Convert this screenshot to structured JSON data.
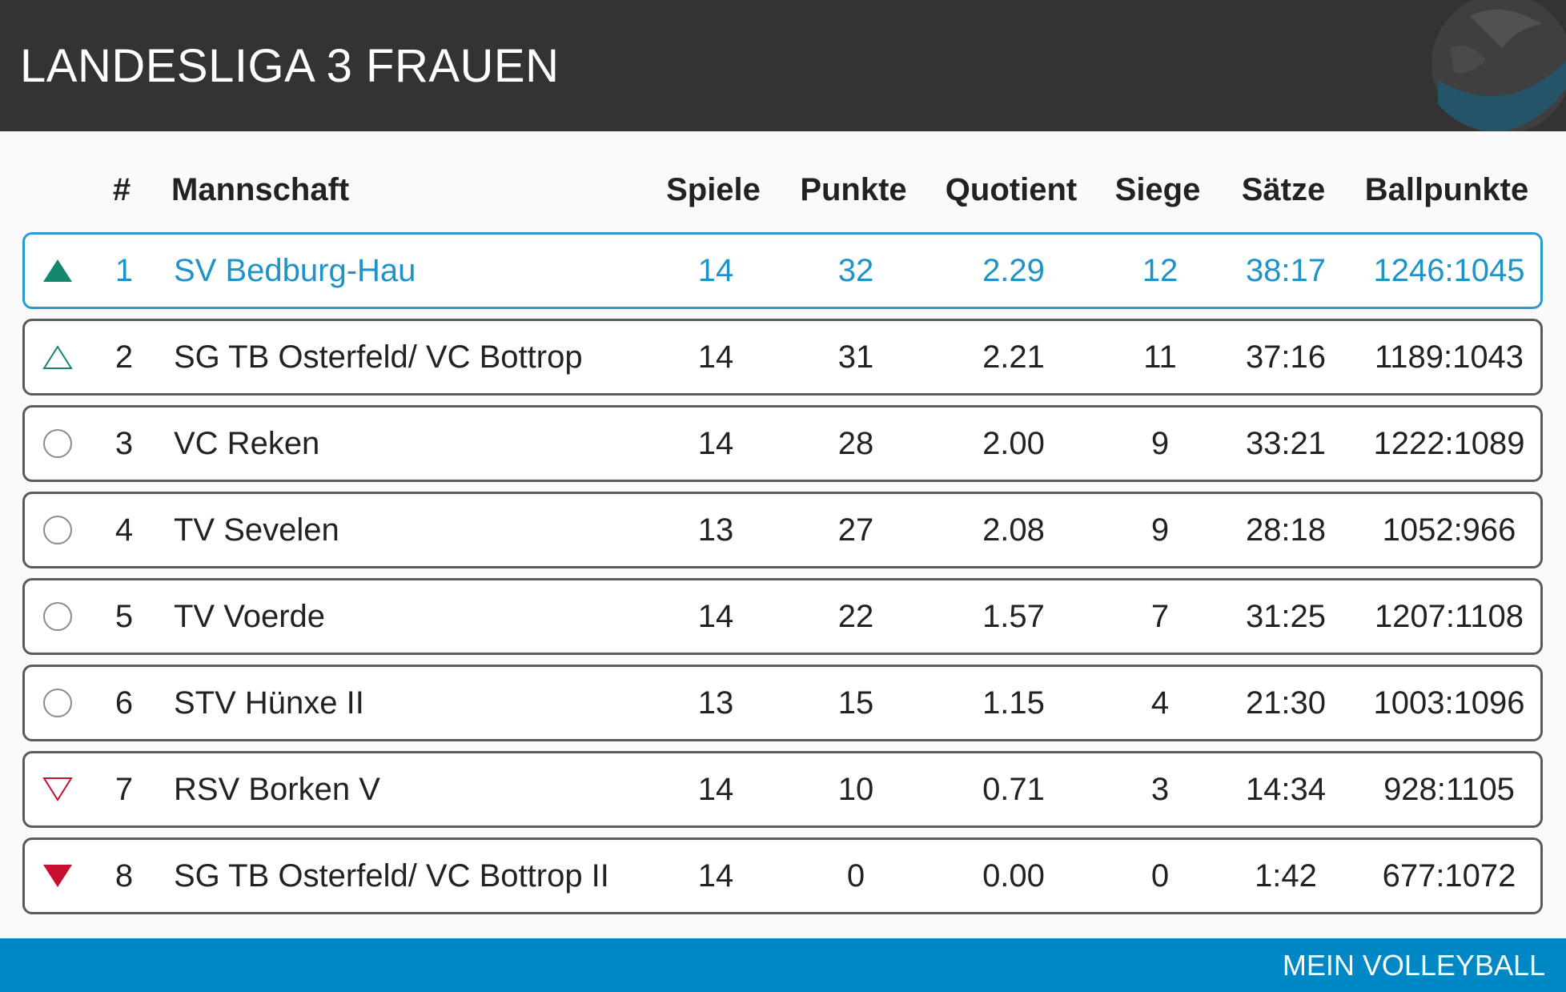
{
  "header": {
    "title": "LANDESLIGA 3 FRAUEN"
  },
  "table": {
    "columns": {
      "rank": "#",
      "team": "Mannschaft",
      "spiele": "Spiele",
      "punkte": "Punkte",
      "quotient": "Quotient",
      "siege": "Siege",
      "saetze": "Sätze",
      "ballpunkte": "Ballpunkte"
    },
    "rows": [
      {
        "status": "promotion",
        "rank": "1",
        "team": "SV Bedburg-Hau",
        "spiele": "14",
        "punkte": "32",
        "quotient": "2.29",
        "siege": "12",
        "saetze": "38:17",
        "ballpunkte": "1246:1045"
      },
      {
        "status": "promotion-relegation",
        "rank": "2",
        "team": "SG TB Osterfeld/ VC Bottrop",
        "spiele": "14",
        "punkte": "31",
        "quotient": "2.21",
        "siege": "11",
        "saetze": "37:16",
        "ballpunkte": "1189:1043"
      },
      {
        "status": "neutral",
        "rank": "3",
        "team": "VC Reken",
        "spiele": "14",
        "punkte": "28",
        "quotient": "2.00",
        "siege": "9",
        "saetze": "33:21",
        "ballpunkte": "1222:1089"
      },
      {
        "status": "neutral",
        "rank": "4",
        "team": "TV Sevelen",
        "spiele": "13",
        "punkte": "27",
        "quotient": "2.08",
        "siege": "9",
        "saetze": "28:18",
        "ballpunkte": "1052:966"
      },
      {
        "status": "neutral",
        "rank": "5",
        "team": "TV Voerde",
        "spiele": "14",
        "punkte": "22",
        "quotient": "1.57",
        "siege": "7",
        "saetze": "31:25",
        "ballpunkte": "1207:1108"
      },
      {
        "status": "neutral",
        "rank": "6",
        "team": "STV Hünxe II",
        "spiele": "13",
        "punkte": "15",
        "quotient": "1.15",
        "siege": "4",
        "saetze": "21:30",
        "ballpunkte": "1003:1096"
      },
      {
        "status": "relegation-down",
        "rank": "7",
        "team": "RSV Borken V",
        "spiele": "14",
        "punkte": "10",
        "quotient": "0.71",
        "siege": "3",
        "saetze": "14:34",
        "ballpunkte": "928:1105"
      },
      {
        "status": "relegation",
        "rank": "8",
        "team": "SG TB Osterfeld/ VC Bottrop II",
        "spiele": "14",
        "punkte": "0",
        "quotient": "0.00",
        "siege": "0",
        "saetze": "1:42",
        "ballpunkte": "677:1072"
      }
    ]
  },
  "footer": {
    "label": "MEIN VOLLEYBALL"
  },
  "colors": {
    "header_bg": "#333333",
    "highlight": "#1e93c8",
    "promotion": "#13876b",
    "relegation": "#c8102e",
    "footer_bg": "#0088c6"
  },
  "icons": {
    "promotion": "filled-up-triangle-icon",
    "promotion-relegation": "outline-up-triangle-icon",
    "neutral": "circle-icon",
    "relegation-down": "outline-down-triangle-icon",
    "relegation": "filled-down-triangle-icon",
    "logo": "volleyball-logo-icon"
  }
}
